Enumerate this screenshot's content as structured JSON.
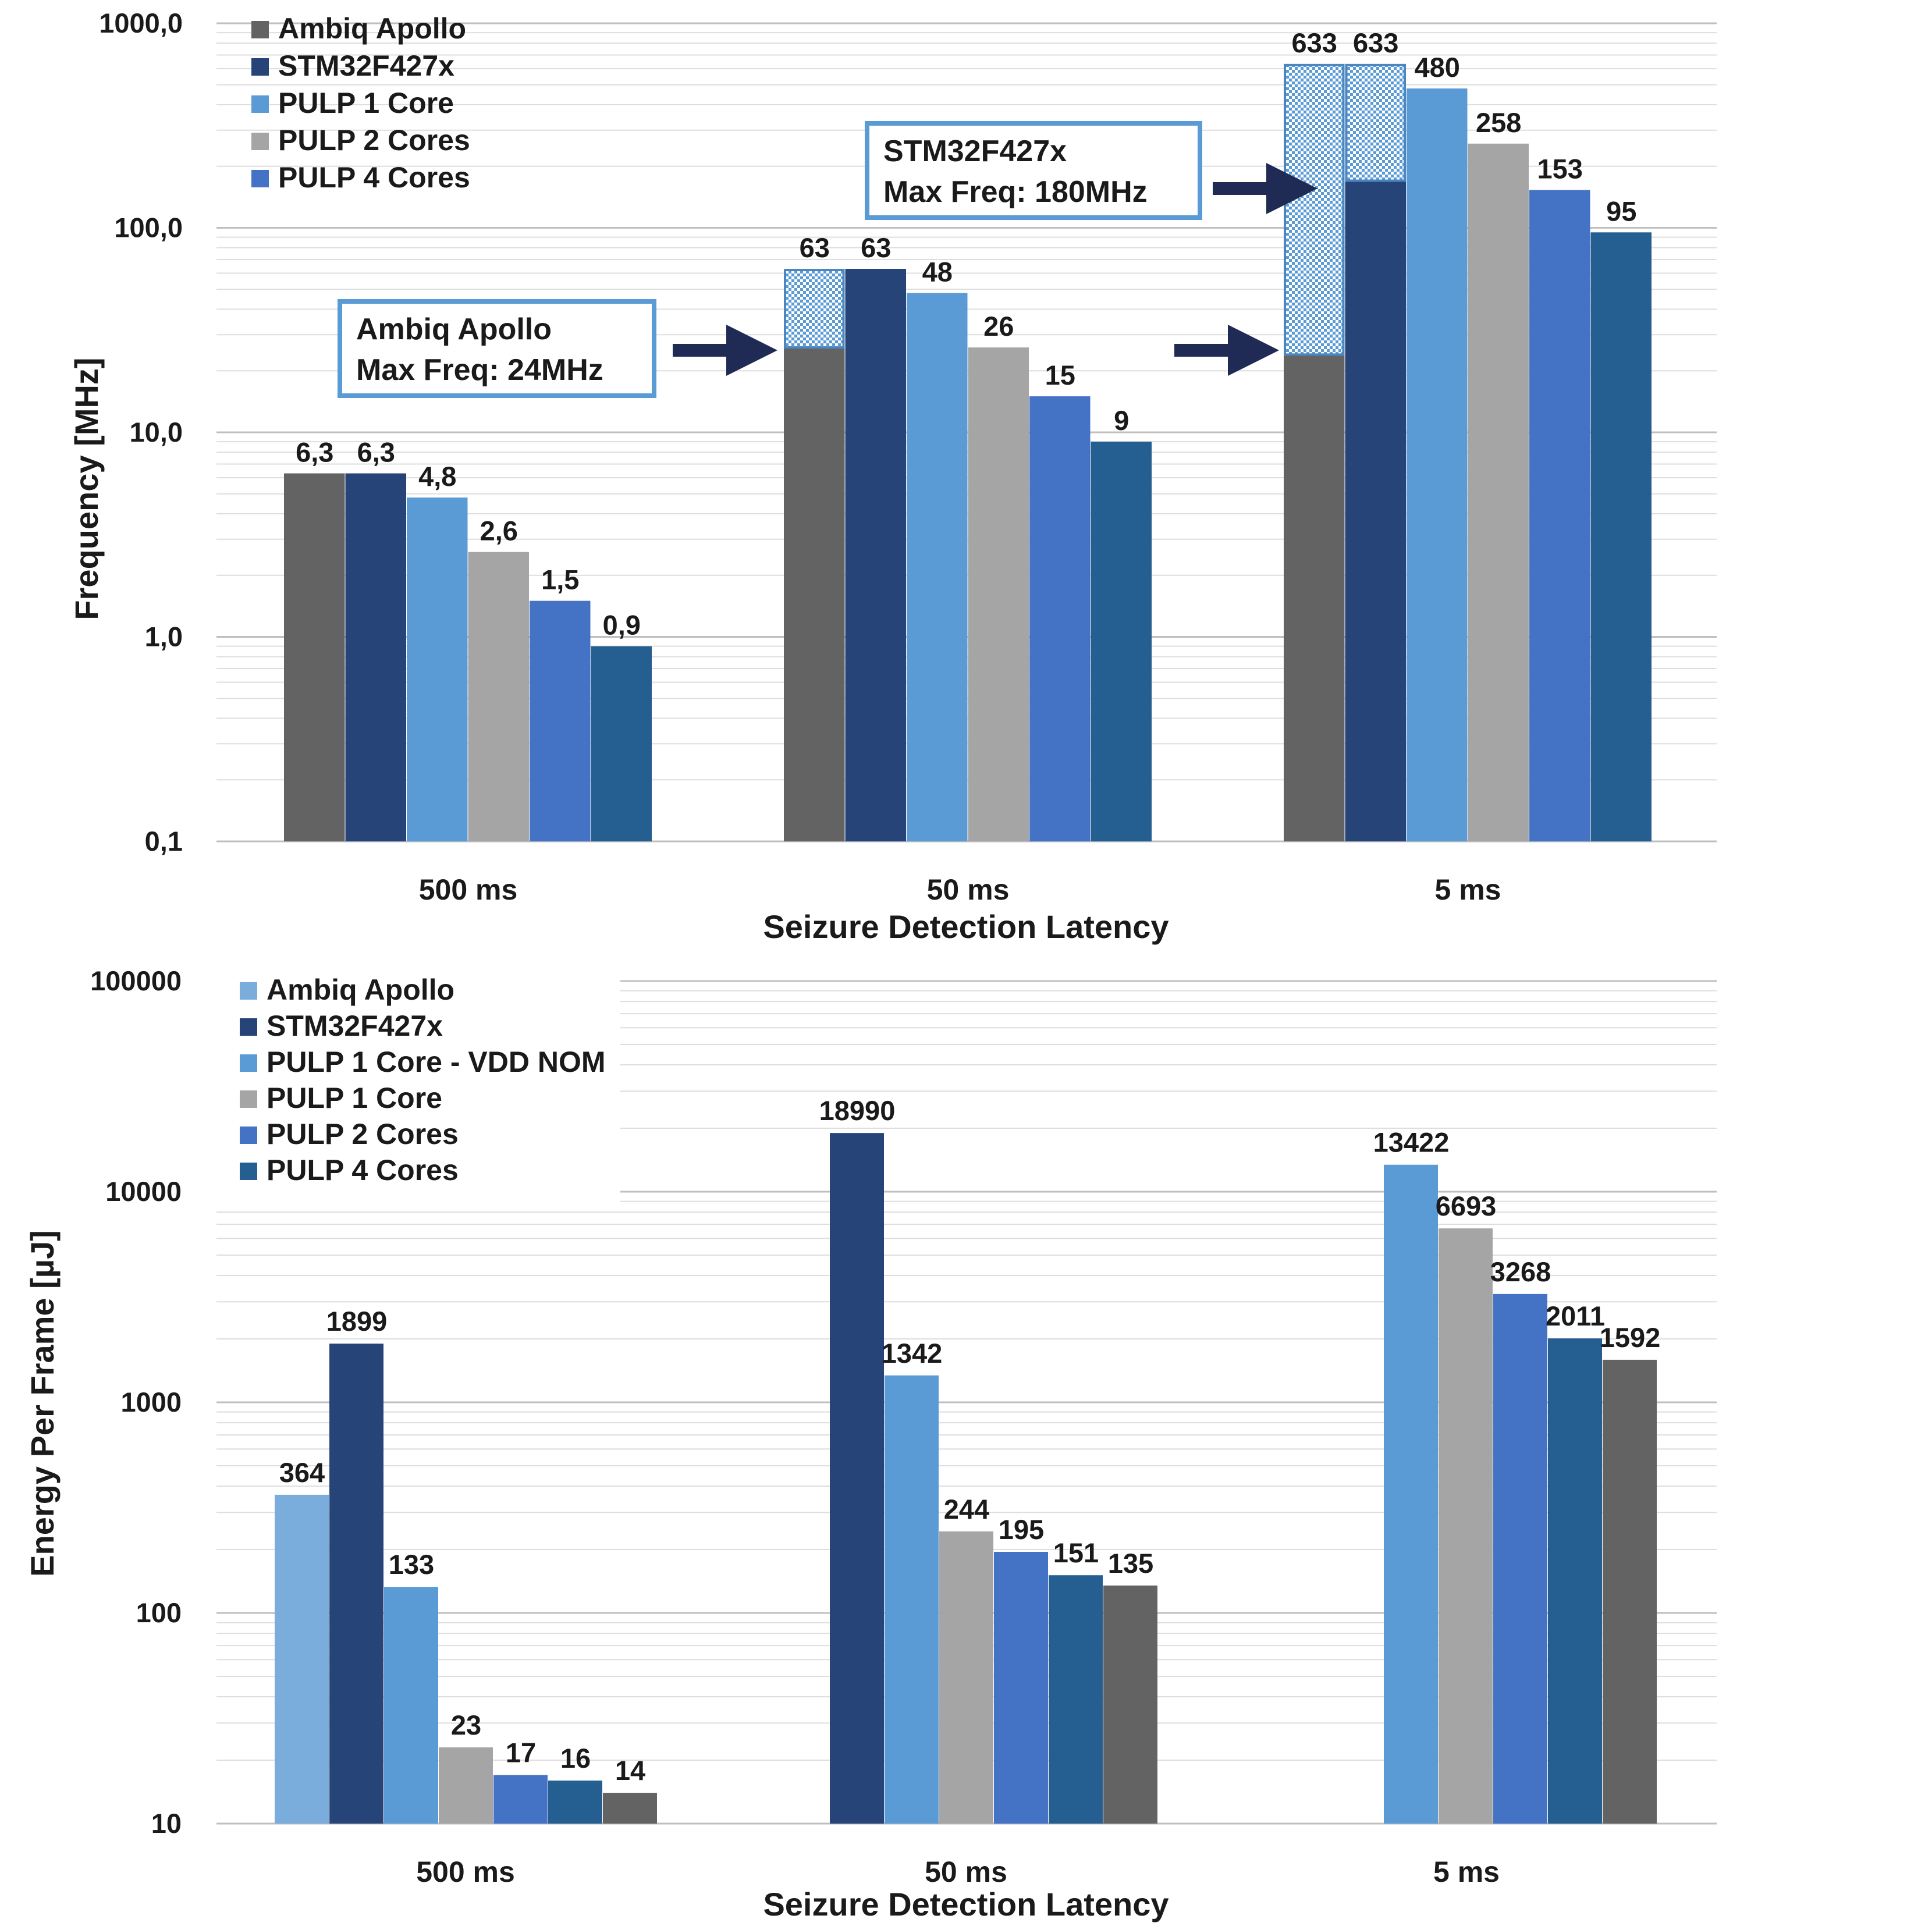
{
  "chart_data": [
    {
      "type": "bar",
      "scale": "log",
      "ylim": [
        0.1,
        1000
      ],
      "yticks": [
        "0,1",
        "1,0",
        "10,0",
        "100,0",
        "1000,0"
      ],
      "ylabel": "Frequency [MHz]",
      "xlabel": "Seizure Detection Latency",
      "categories": [
        "500 ms",
        "50 ms",
        "5 ms"
      ],
      "legend_position": "top-left",
      "series": [
        {
          "name": "Ambiq Apollo",
          "color": "#636363",
          "values": [
            6.3,
            63,
            633
          ],
          "labels": [
            "6,3",
            "63",
            "633"
          ],
          "solid_until": [
            6.3,
            26,
            24
          ]
        },
        {
          "name": "STM32F427x",
          "color": "#264478",
          "values": [
            6.3,
            63,
            633
          ],
          "labels": [
            "6,3",
            "63",
            "633"
          ],
          "solid_until": [
            6.3,
            63,
            170
          ]
        },
        {
          "name": "PULP 1 Core",
          "color": "#5b9bd5",
          "values": [
            4.8,
            48,
            480
          ],
          "labels": [
            "4,8",
            "48",
            "480"
          ]
        },
        {
          "name": "PULP 2 Cores",
          "color": "#a5a5a5",
          "values": [
            2.6,
            26,
            258
          ],
          "labels": [
            "2,6",
            "26",
            "258"
          ]
        },
        {
          "name": "PULP 4 Cores",
          "color": "#4472c4",
          "values": [
            1.5,
            15,
            153
          ],
          "labels": [
            "1,5",
            "15",
            "153"
          ]
        },
        {
          "name": "",
          "color": "#255e91",
          "values": [
            0.9,
            9,
            95
          ],
          "labels": [
            "0,9",
            "9",
            "95"
          ]
        }
      ],
      "annotations": [
        {
          "title": "Ambiq Apollo",
          "text": "Max Freq: 24MHz"
        },
        {
          "title": "STM32F427x",
          "text": "Max Freq: 180MHz"
        }
      ]
    },
    {
      "type": "bar",
      "scale": "log",
      "ylim": [
        10,
        100000
      ],
      "yticks": [
        "10",
        "100",
        "1000",
        "10000",
        "100000"
      ],
      "ylabel": "Energy Per Frame [µJ]",
      "xlabel": "Seizure Detection Latency",
      "categories": [
        "500 ms",
        "50 ms",
        "5 ms"
      ],
      "legend_position": "top-left",
      "groups": [
        {
          "category": "500 ms",
          "bars": [
            {
              "series": "Ambiq Apollo",
              "value": 364,
              "color": "#7aaddc"
            },
            {
              "series": "STM32F427x",
              "value": 1899,
              "color": "#264478"
            },
            {
              "series": "PULP 1 Core - VDD NOM",
              "value": 133,
              "color": "#5b9bd5"
            },
            {
              "series": "PULP 1 Core",
              "value": 23,
              "color": "#a5a5a5"
            },
            {
              "series": "PULP 2 Cores",
              "value": 17,
              "color": "#4472c4"
            },
            {
              "series": "PULP 4 Cores",
              "value": 16,
              "color": "#255e91"
            },
            {
              "series": "",
              "value": 14,
              "color": "#636363"
            }
          ]
        },
        {
          "category": "50 ms",
          "bars": [
            {
              "series": "STM32F427x",
              "value": 18990,
              "color": "#264478"
            },
            {
              "series": "PULP 1 Core - VDD NOM",
              "value": 1342,
              "color": "#5b9bd5"
            },
            {
              "series": "PULP 1 Core",
              "value": 244,
              "color": "#a5a5a5"
            },
            {
              "series": "PULP 2 Cores",
              "value": 195,
              "color": "#4472c4"
            },
            {
              "series": "PULP 4 Cores",
              "value": 151,
              "color": "#255e91"
            },
            {
              "series": "",
              "value": 135,
              "color": "#636363"
            }
          ]
        },
        {
          "category": "5 ms",
          "bars": [
            {
              "series": "PULP 1 Core - VDD NOM",
              "value": 13422,
              "color": "#5b9bd5"
            },
            {
              "series": "PULP 1 Core",
              "value": 6693,
              "color": "#a5a5a5"
            },
            {
              "series": "PULP 2 Cores",
              "value": 3268,
              "color": "#4472c4"
            },
            {
              "series": "PULP 4 Cores",
              "value": 2011,
              "color": "#255e91"
            },
            {
              "series": "",
              "value": 1592,
              "color": "#636363"
            }
          ]
        }
      ],
      "legend": [
        {
          "name": "Ambiq Apollo",
          "color": "#7aaddc"
        },
        {
          "name": "STM32F427x",
          "color": "#264478"
        },
        {
          "name": "PULP 1 Core - VDD NOM",
          "color": "#5b9bd5"
        },
        {
          "name": "PULP 1 Core",
          "color": "#a5a5a5"
        },
        {
          "name": "PULP 2 Cores",
          "color": "#4472c4"
        },
        {
          "name": "PULP 4 Cores",
          "color": "#255e91"
        }
      ]
    }
  ]
}
